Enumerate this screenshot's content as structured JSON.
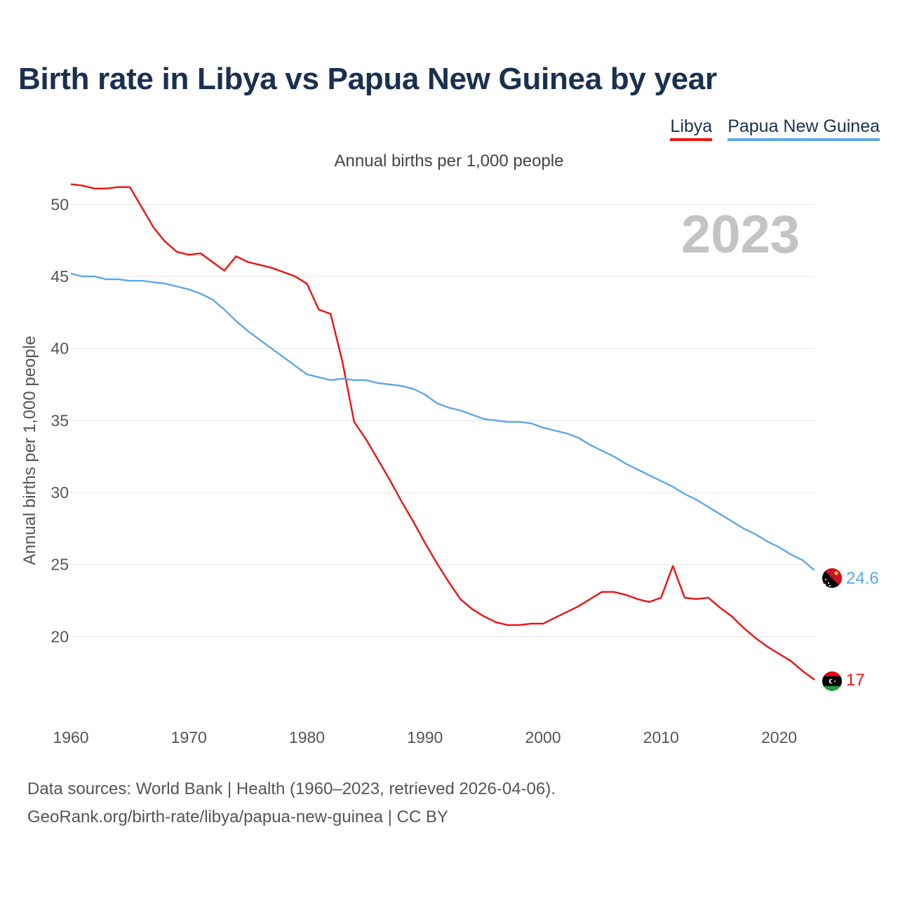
{
  "title": "Birth rate in Libya vs Papua New Guinea by year",
  "legend": {
    "libya": "Libya",
    "png": "Papua New Guinea"
  },
  "subtitle": "Annual births per 1,000 people",
  "footer": {
    "line1": "Data sources: World Bank | Health (1960–2023, retrieved 2026-04-06).",
    "line2": "GeoRank.org/birth-rate/libya/papua-new-guinea | CC BY"
  },
  "chart_data": {
    "type": "line",
    "title": "Birth rate in Libya vs Papua New Guinea by year",
    "ylabel": "Annual births per 1,000 people",
    "xlabel": "",
    "year_label": "2023",
    "xlim": [
      1960,
      2023
    ],
    "ylim": [
      15,
      52.5
    ],
    "yticks": [
      20,
      25,
      30,
      35,
      40,
      45,
      50
    ],
    "xticks": [
      1960,
      1970,
      1980,
      1990,
      2000,
      2010,
      2020
    ],
    "x": [
      1960,
      1961,
      1962,
      1963,
      1964,
      1965,
      1966,
      1967,
      1968,
      1969,
      1970,
      1971,
      1972,
      1973,
      1974,
      1975,
      1976,
      1977,
      1978,
      1979,
      1980,
      1981,
      1982,
      1983,
      1984,
      1985,
      1986,
      1987,
      1988,
      1989,
      1990,
      1991,
      1992,
      1993,
      1994,
      1995,
      1996,
      1997,
      1998,
      1999,
      2000,
      2001,
      2002,
      2003,
      2004,
      2005,
      2006,
      2007,
      2008,
      2009,
      2010,
      2011,
      2012,
      2013,
      2014,
      2015,
      2016,
      2017,
      2018,
      2019,
      2020,
      2021,
      2022,
      2023
    ],
    "series": [
      {
        "name": "Libya",
        "color": "#ee1111",
        "end_label": "17",
        "values": [
          51.4,
          51.3,
          51.1,
          51.1,
          51.2,
          51.2,
          49.8,
          48.4,
          47.4,
          46.7,
          46.5,
          46.6,
          46.0,
          45.4,
          46.4,
          46.0,
          45.8,
          45.6,
          45.3,
          45.0,
          44.5,
          42.7,
          42.4,
          39.1,
          34.9,
          33.7,
          32.3,
          30.9,
          29.4,
          28.0,
          26.5,
          25.1,
          23.8,
          22.6,
          21.9,
          21.4,
          21.0,
          20.8,
          20.8,
          20.9,
          20.9,
          21.3,
          21.7,
          22.1,
          22.6,
          23.1,
          23.1,
          22.9,
          22.6,
          22.4,
          22.7,
          24.9,
          22.7,
          22.6,
          22.7,
          22.0,
          21.4,
          20.6,
          19.9,
          19.3,
          18.8,
          18.3,
          17.6,
          17.0
        ]
      },
      {
        "name": "Papua New Guinea",
        "color": "#5ea7e8",
        "end_label": "24.6",
        "values": [
          45.2,
          45.0,
          45.0,
          44.8,
          44.8,
          44.7,
          44.7,
          44.6,
          44.5,
          44.3,
          44.1,
          43.8,
          43.4,
          42.7,
          41.9,
          41.2,
          40.6,
          40.0,
          39.4,
          38.8,
          38.2,
          38.0,
          37.8,
          37.9,
          37.8,
          37.8,
          37.6,
          37.5,
          37.4,
          37.2,
          36.8,
          36.2,
          35.9,
          35.7,
          35.4,
          35.1,
          35.0,
          34.9,
          34.9,
          34.8,
          34.5,
          34.3,
          34.1,
          33.8,
          33.3,
          32.9,
          32.5,
          32.0,
          31.6,
          31.2,
          30.8,
          30.4,
          29.9,
          29.5,
          29.0,
          28.5,
          28.0,
          27.5,
          27.1,
          26.6,
          26.2,
          25.7,
          25.3,
          24.6
        ]
      }
    ]
  }
}
